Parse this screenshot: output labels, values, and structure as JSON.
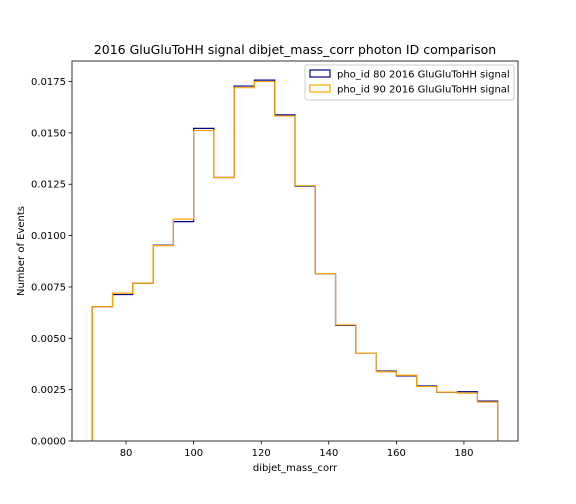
{
  "chart_data": {
    "type": "step-histogram",
    "title": "2016 GluGluToHH signal dibjet_mass_corr photon ID comparison",
    "xlabel": "dibjet_mass_corr",
    "ylabel": "Number of Events",
    "xlim": [
      64.0,
      196.0
    ],
    "ylim": [
      0.0,
      0.0185
    ],
    "x_ticks": [
      80,
      100,
      120,
      140,
      160,
      180
    ],
    "x_tick_labels": [
      "80",
      "100",
      "120",
      "140",
      "160",
      "180"
    ],
    "y_ticks": [
      0.0,
      0.0025,
      0.005,
      0.0075,
      0.01,
      0.0125,
      0.015,
      0.0175
    ],
    "y_tick_labels": [
      "0.0000",
      "0.0025",
      "0.0050",
      "0.0075",
      "0.0100",
      "0.0125",
      "0.0150",
      "0.0175"
    ],
    "bin_edges": [
      70,
      76,
      82,
      88,
      94,
      100,
      106,
      112,
      118,
      124,
      130,
      136,
      142,
      148,
      154,
      160,
      166,
      172,
      178,
      184,
      190
    ],
    "legend_position": "upper-right",
    "series": [
      {
        "name": "pho_id 80 2016 GluGluToHH signal",
        "color": "#00008b",
        "values": [
          0.00654,
          0.00713,
          0.00768,
          0.00953,
          0.01068,
          0.01522,
          0.01283,
          0.01728,
          0.01757,
          0.01588,
          0.01241,
          0.00815,
          0.00563,
          0.00428,
          0.0034,
          0.00317,
          0.00268,
          0.00237,
          0.0024,
          0.00194
        ]
      },
      {
        "name": "pho_id 90 2016 GluGluToHH signal",
        "color": "#ffa500",
        "values": [
          0.00654,
          0.0072,
          0.00768,
          0.00951,
          0.0108,
          0.01512,
          0.01283,
          0.0172,
          0.0175,
          0.01582,
          0.01243,
          0.00815,
          0.00565,
          0.00428,
          0.00337,
          0.0032,
          0.00265,
          0.00238,
          0.00233,
          0.0019
        ]
      }
    ]
  }
}
